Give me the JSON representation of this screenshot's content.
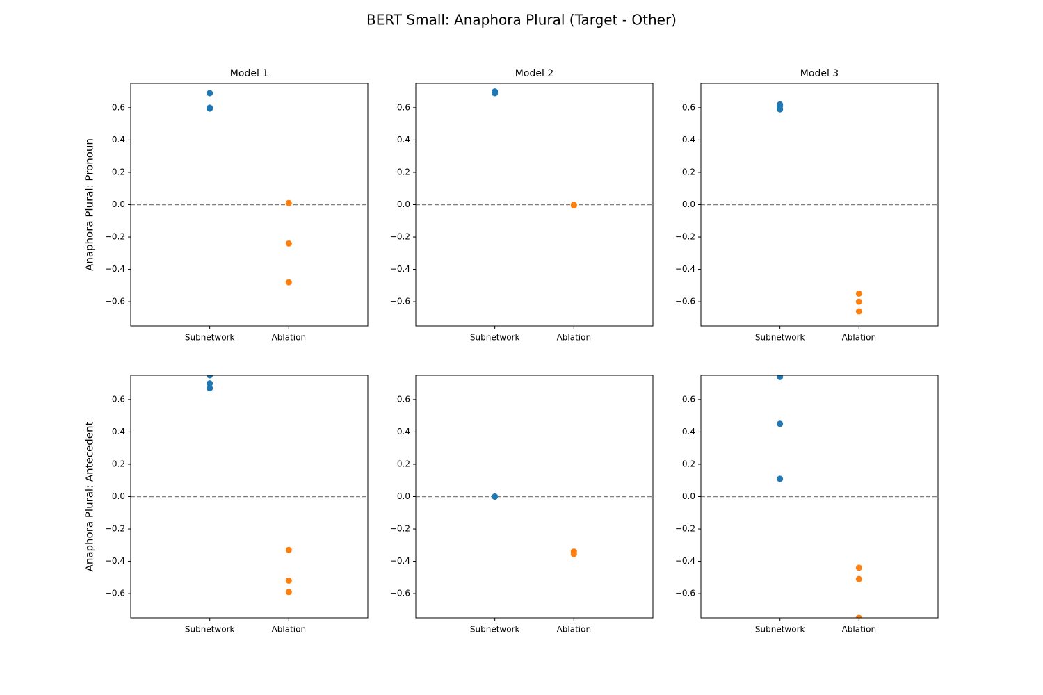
{
  "title": "BERT Small: Anaphora Plural (Target - Other)",
  "chart_data": [
    {
      "type": "strip",
      "title": "Model 1",
      "ylabel": "Anaphora Plural: Pronoun",
      "categories": [
        "Subnetwork",
        "Ablation"
      ],
      "colors": [
        "#1f77b4",
        "#ff7f0e"
      ],
      "values": [
        [
          0.69,
          0.6,
          0.595
        ],
        [
          0.01,
          -0.24,
          -0.48
        ]
      ],
      "hline": 0,
      "ylim": [
        -0.75,
        0.75
      ],
      "yticks": [
        {
          "value": -0.6,
          "label": "−0.6"
        },
        {
          "value": -0.4,
          "label": "−0.4"
        },
        {
          "value": -0.2,
          "label": "−0.2"
        },
        {
          "value": 0,
          "label": "0.0"
        },
        0.2,
        0.4,
        0.6
      ]
    },
    {
      "type": "strip",
      "title": "Model 2",
      "categories": [
        "Subnetwork",
        "Ablation"
      ],
      "colors": [
        "#1f77b4",
        "#ff7f0e"
      ],
      "values": [
        [
          0.7,
          0.69
        ],
        [
          0.0,
          -0.005
        ]
      ],
      "hline": 0,
      "ylim": [
        -0.75,
        0.75
      ],
      "yticks": [
        {
          "value": -0.6,
          "label": "−0.6"
        },
        {
          "value": -0.4,
          "label": "−0.4"
        },
        {
          "value": -0.2,
          "label": "−0.2"
        },
        {
          "value": 0,
          "label": "0.0"
        },
        0.2,
        0.4,
        0.6
      ]
    },
    {
      "type": "strip",
      "title": "Model 3",
      "categories": [
        "Subnetwork",
        "Ablation"
      ],
      "colors": [
        "#1f77b4",
        "#ff7f0e"
      ],
      "values": [
        [
          0.62,
          0.61,
          0.59
        ],
        [
          -0.55,
          -0.6,
          -0.66
        ]
      ],
      "hline": 0,
      "ylim": [
        -0.75,
        0.75
      ],
      "yticks": [
        {
          "value": -0.6,
          "label": "−0.6"
        },
        {
          "value": -0.4,
          "label": "−0.4"
        },
        {
          "value": -0.2,
          "label": "−0.2"
        },
        {
          "value": 0,
          "label": "0.0"
        },
        0.2,
        0.4,
        0.6
      ]
    },
    {
      "type": "strip",
      "ylabel": "Anaphora Plural: Antecedent",
      "categories": [
        "Subnetwork",
        "Ablation"
      ],
      "colors": [
        "#1f77b4",
        "#ff7f0e"
      ],
      "values": [
        [
          0.75,
          0.7,
          0.67
        ],
        [
          -0.33,
          -0.52,
          -0.59
        ]
      ],
      "hline": 0,
      "ylim": [
        -0.75,
        0.75
      ],
      "yticks": [
        {
          "value": -0.6,
          "label": "−0.6"
        },
        {
          "value": -0.4,
          "label": "−0.4"
        },
        {
          "value": -0.2,
          "label": "−0.2"
        },
        {
          "value": 0,
          "label": "0.0"
        },
        0.2,
        0.4,
        0.6
      ]
    },
    {
      "type": "strip",
      "categories": [
        "Subnetwork",
        "Ablation"
      ],
      "colors": [
        "#1f77b4",
        "#ff7f0e"
      ],
      "values": [
        [
          0.0,
          0.0
        ],
        [
          -0.34,
          -0.355
        ]
      ],
      "hline": 0,
      "ylim": [
        -0.75,
        0.75
      ],
      "yticks": [
        {
          "value": -0.6,
          "label": "−0.6"
        },
        {
          "value": -0.4,
          "label": "−0.4"
        },
        {
          "value": -0.2,
          "label": "−0.2"
        },
        {
          "value": 0,
          "label": "0.0"
        },
        0.2,
        0.4,
        0.6
      ]
    },
    {
      "type": "strip",
      "categories": [
        "Subnetwork",
        "Ablation"
      ],
      "colors": [
        "#1f77b4",
        "#ff7f0e"
      ],
      "values": [
        [
          0.74,
          0.45,
          0.11
        ],
        [
          -0.44,
          -0.51,
          -0.75
        ]
      ],
      "hline": 0,
      "ylim": [
        -0.75,
        0.75
      ],
      "yticks": [
        {
          "value": -0.6,
          "label": "−0.6"
        },
        {
          "value": -0.4,
          "label": "−0.4"
        },
        {
          "value": -0.2,
          "label": "−0.2"
        },
        {
          "value": 0,
          "label": "0.0"
        },
        0.2,
        0.4,
        0.6
      ]
    }
  ]
}
